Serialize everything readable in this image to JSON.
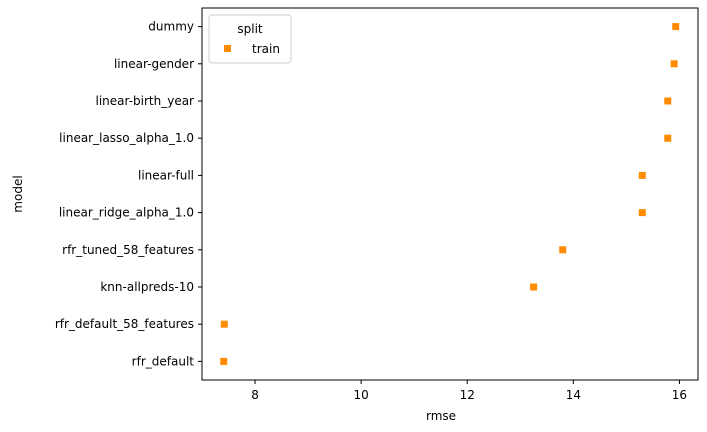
{
  "chart_data": {
    "type": "scatter",
    "orientation": "horizontal",
    "xlabel": "rmse",
    "ylabel": "model",
    "xlim": [
      7.0,
      16.35
    ],
    "xticks": [
      "8",
      "10",
      "12",
      "14",
      "16"
    ],
    "categories": [
      "dummy",
      "linear-gender",
      "linear-birth_year",
      "linear_lasso_alpha_1.0",
      "linear-full",
      "linear_ridge_alpha_1.0",
      "rfr_tuned_58_features",
      "knn-allpreds-10",
      "rfr_default_58_features",
      "rfr_default"
    ],
    "series": [
      {
        "name": "train",
        "marker": "square",
        "color": "#ff8c00",
        "values": [
          15.93,
          15.9,
          15.78,
          15.78,
          15.3,
          15.3,
          13.8,
          13.25,
          7.42,
          7.41
        ]
      }
    ],
    "legend": {
      "title": "split",
      "placement": "top-left"
    },
    "grid": false
  }
}
